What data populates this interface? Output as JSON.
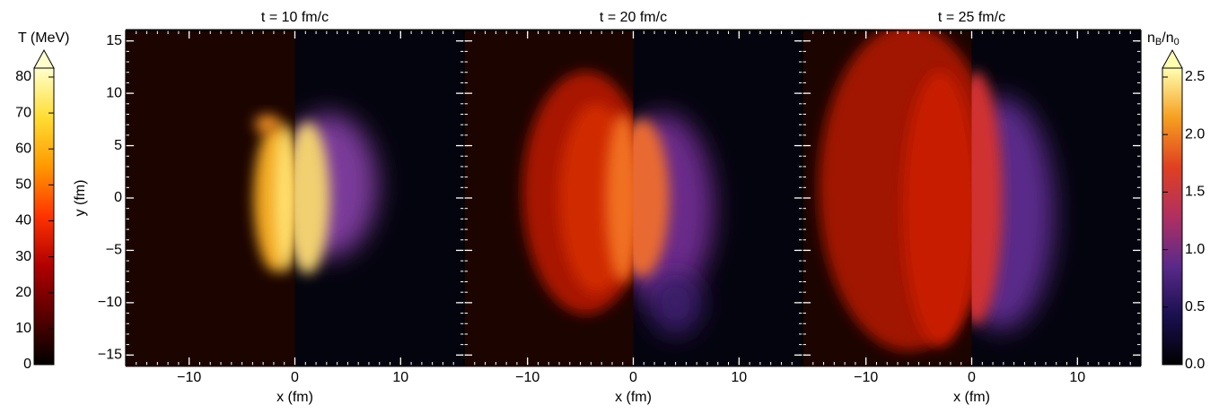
{
  "chart_data": {
    "type": "heatmap",
    "panels": [
      {
        "title": "t = 10 fm/c"
      },
      {
        "title": "t = 20 fm/c"
      },
      {
        "title": "t = 25 fm/c"
      }
    ],
    "xlabel": "x (fm)",
    "ylabel": "y (fm)",
    "xlim": [
      -16,
      16
    ],
    "ylim": [
      -16,
      16
    ],
    "xticks": [
      {
        "value": -10,
        "label": "−10"
      },
      0,
      10
    ],
    "yticks": [
      {
        "value": -15,
        "label": "−15"
      },
      {
        "value": -10,
        "label": "−10"
      },
      {
        "value": -5,
        "label": "−5"
      },
      0,
      5,
      10,
      15
    ],
    "colorbars": [
      {
        "label": "T (MeV)",
        "lim": [
          0,
          80
        ],
        "ticks": [
          0,
          10,
          20,
          30,
          40,
          50,
          60,
          70,
          80
        ],
        "colors": [
          "#000000",
          "#5a0000",
          "#b00000",
          "#ff3300",
          "#ff9900",
          "#ffdd33",
          "#ffffcc"
        ]
      },
      {
        "label_parts": [
          "n",
          "B",
          "/n",
          "0"
        ],
        "lim": [
          0,
          2.5
        ],
        "ticks": [
          {
            "value": 0,
            "label": "0.0"
          },
          0.5,
          {
            "value": 1,
            "label": "1.0"
          },
          1.5,
          {
            "value": 2,
            "label": "2.0"
          },
          2.5
        ],
        "colors": [
          "#000000",
          "#1a1050",
          "#5a2a8a",
          "#b03060",
          "#e04020",
          "#f5a020",
          "#ffffb0"
        ]
      }
    ]
  }
}
